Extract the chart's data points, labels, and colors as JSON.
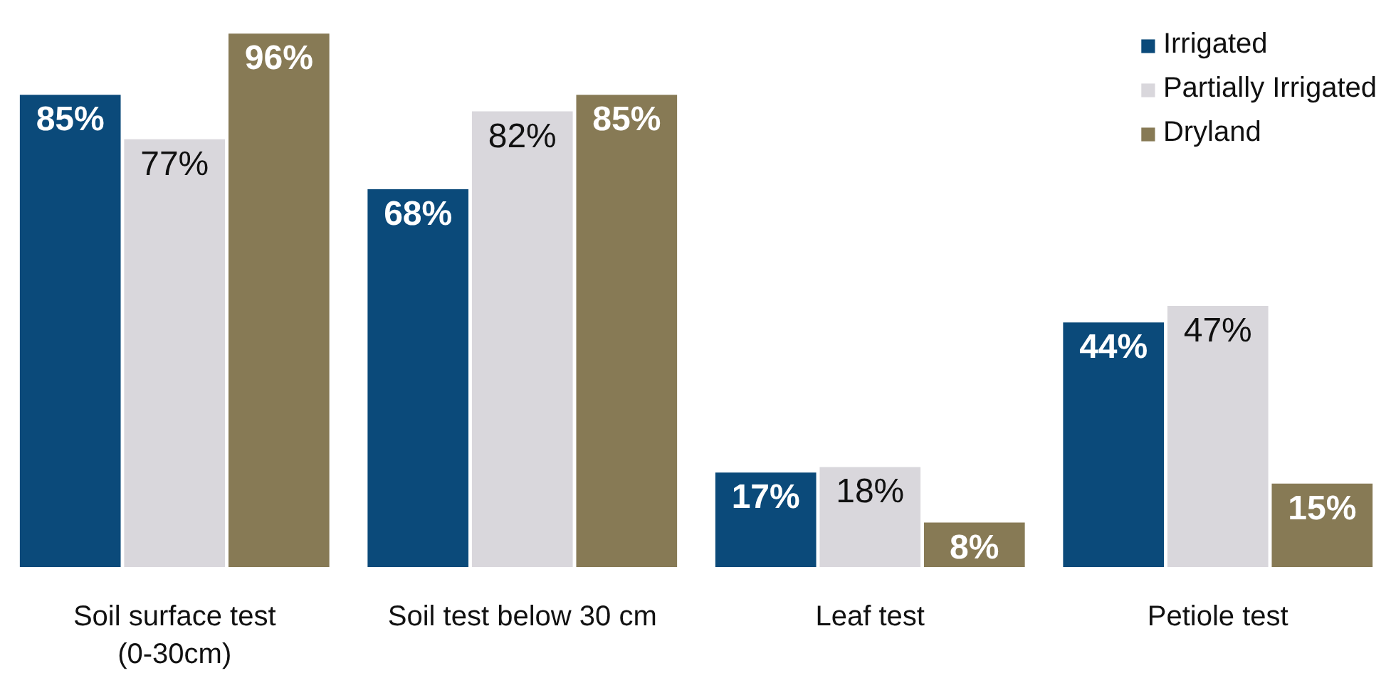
{
  "chart_data": {
    "type": "bar",
    "categories": [
      "Soil surface test (0-30cm)",
      "Soil test below 30 cm",
      "Leaf test",
      "Petiole test"
    ],
    "series": [
      {
        "name": "Irrigated",
        "color": "#0b4a7a",
        "values": [
          85,
          68,
          17,
          44
        ],
        "value_labels": [
          "85%",
          "68%",
          "17%",
          "44%"
        ]
      },
      {
        "name": "Partially Irrigated",
        "color": "#d9d7dc",
        "values": [
          77,
          82,
          18,
          47
        ],
        "value_labels": [
          "77%",
          "82%",
          "18%",
          "47%"
        ]
      },
      {
        "name": "Dryland",
        "color": "#877a55",
        "values": [
          96,
          85,
          8,
          15
        ],
        "value_labels": [
          "96%",
          "85%",
          "8%",
          "15%"
        ]
      }
    ],
    "legend": "top right",
    "grid": false
  }
}
